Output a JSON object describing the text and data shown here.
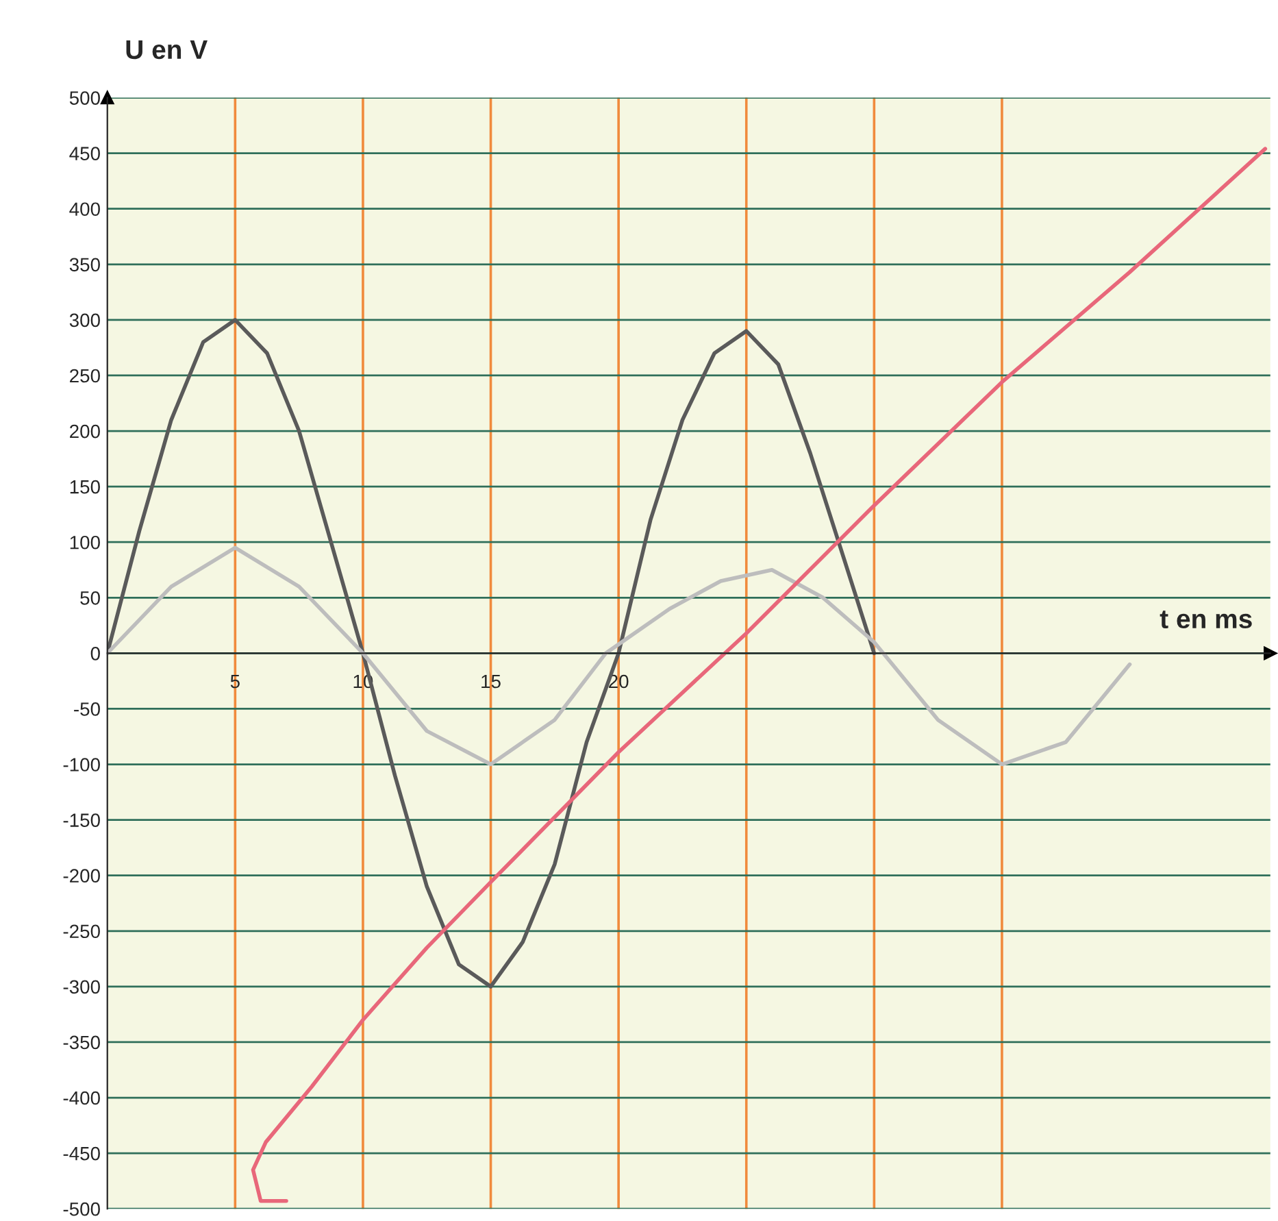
{
  "chart_data": {
    "type": "line",
    "xlabel": "t en ms",
    "ylabel": "U en V",
    "xlim": [
      0,
      45.5
    ],
    "ylim": [
      -500,
      500
    ],
    "xticks": [
      5,
      10,
      15,
      20,
      {
        "value": 25,
        "label": null
      },
      {
        "value": 30,
        "label": null
      },
      {
        "value": 35,
        "label": null
      }
    ],
    "yticks": [
      -500,
      -450,
      -400,
      -350,
      -300,
      -250,
      -200,
      -150,
      -100,
      -50,
      0,
      50,
      100,
      150,
      200,
      250,
      300,
      350,
      400,
      450,
      500
    ],
    "grid": true,
    "line_style": "solid",
    "marker": "none",
    "series": [
      {
        "color": "#5a5a5a",
        "x": [
          0,
          1.25,
          2.5,
          3.75,
          5,
          6.25,
          7.5,
          8.75,
          10,
          11.25,
          12.5,
          13.75,
          15,
          16.25,
          17.5,
          18.75,
          20,
          21.25,
          22.5,
          23.75,
          25,
          26.25,
          27.5,
          28.75,
          30
        ],
        "values": [
          0,
          110,
          210,
          280,
          300,
          270,
          200,
          100,
          0,
          -110,
          -210,
          -280,
          -300,
          -260,
          -190,
          -80,
          0,
          120,
          210,
          270,
          290,
          260,
          180,
          90,
          0
        ]
      },
      {
        "color": "#bdbdbd",
        "x": [
          0,
          2.5,
          5,
          7.5,
          10,
          12.5,
          15,
          17.5,
          19.5,
          22,
          24,
          26,
          28,
          30,
          32.5,
          35,
          37.5,
          40
        ],
        "values": [
          0,
          60,
          95,
          60,
          0,
          -70,
          -100,
          -60,
          0,
          40,
          65,
          75,
          50,
          10,
          -60,
          -100,
          -80,
          -10
        ]
      },
      {
        "color": "#e8677a",
        "x": [
          7,
          6,
          5.7,
          6.2,
          8,
          10,
          12.5,
          15,
          20,
          25,
          30,
          35,
          40,
          45.3
        ],
        "values": [
          -493,
          -493,
          -465,
          -440,
          -390,
          -330,
          -265,
          -206,
          -89,
          18,
          133,
          244,
          343,
          454
        ]
      }
    ]
  }
}
